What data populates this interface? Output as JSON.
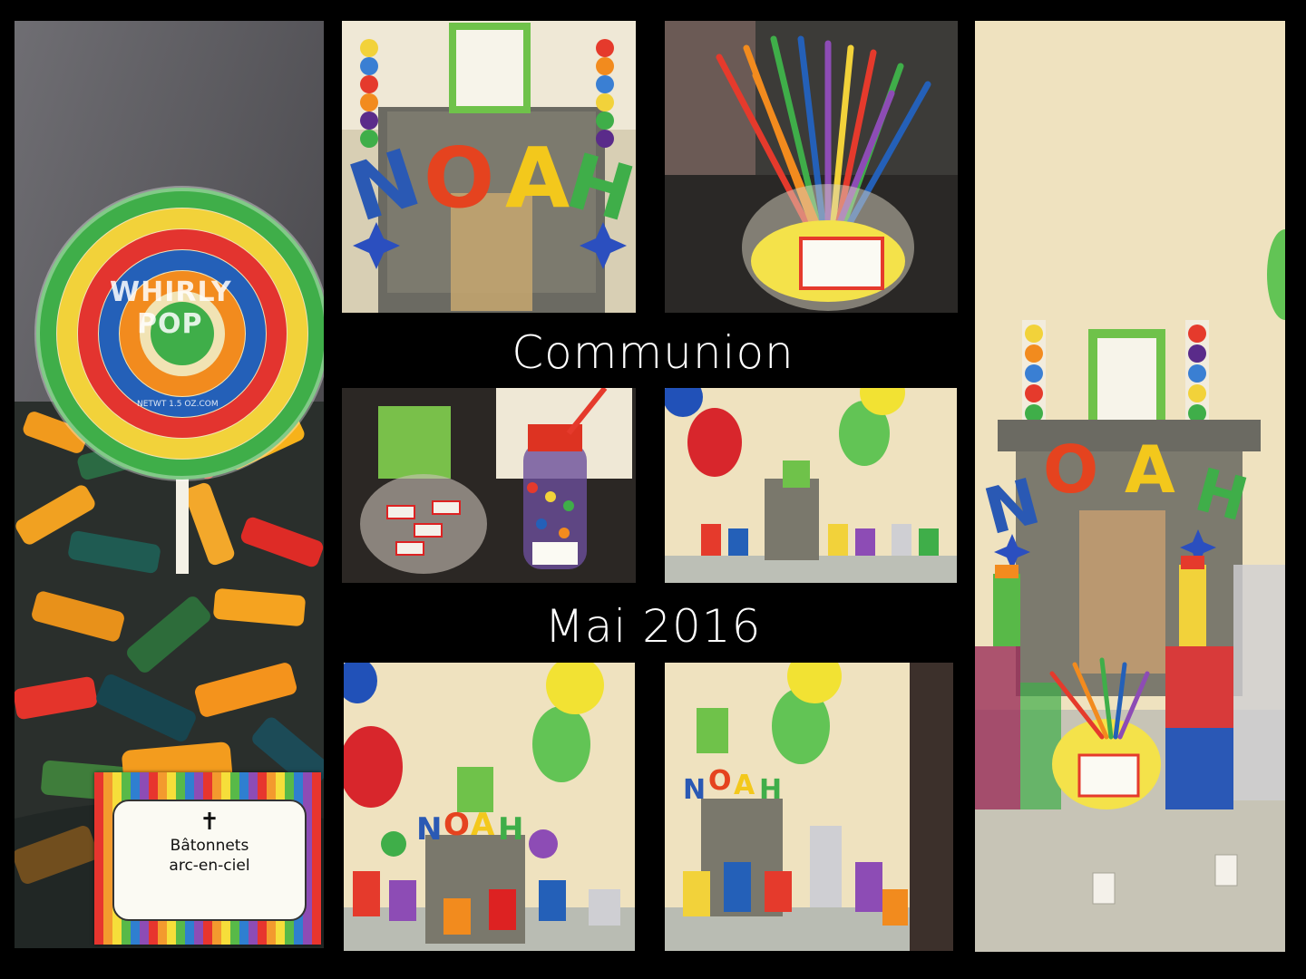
{
  "captions": {
    "title": "Communion",
    "date": "Mai 2016"
  },
  "candy_label": {
    "cross": "✝",
    "line1": "Bâtonnets",
    "line2": "arc-en-ciel"
  },
  "lollipop": {
    "brand_line1": "WHIRLY",
    "brand_line2": "POP",
    "url": "NETWT 1.5 OZ.COM"
  },
  "name_letters": [
    "N",
    "O",
    "A",
    "H"
  ],
  "colors": {
    "background": "#000000",
    "caption": "#ffffff",
    "wall": "#efe2bf",
    "balloon_red": "#d8262c",
    "balloon_green": "#62c455",
    "balloon_yellow": "#f2e233",
    "balloon_blue": "#2151b8"
  }
}
